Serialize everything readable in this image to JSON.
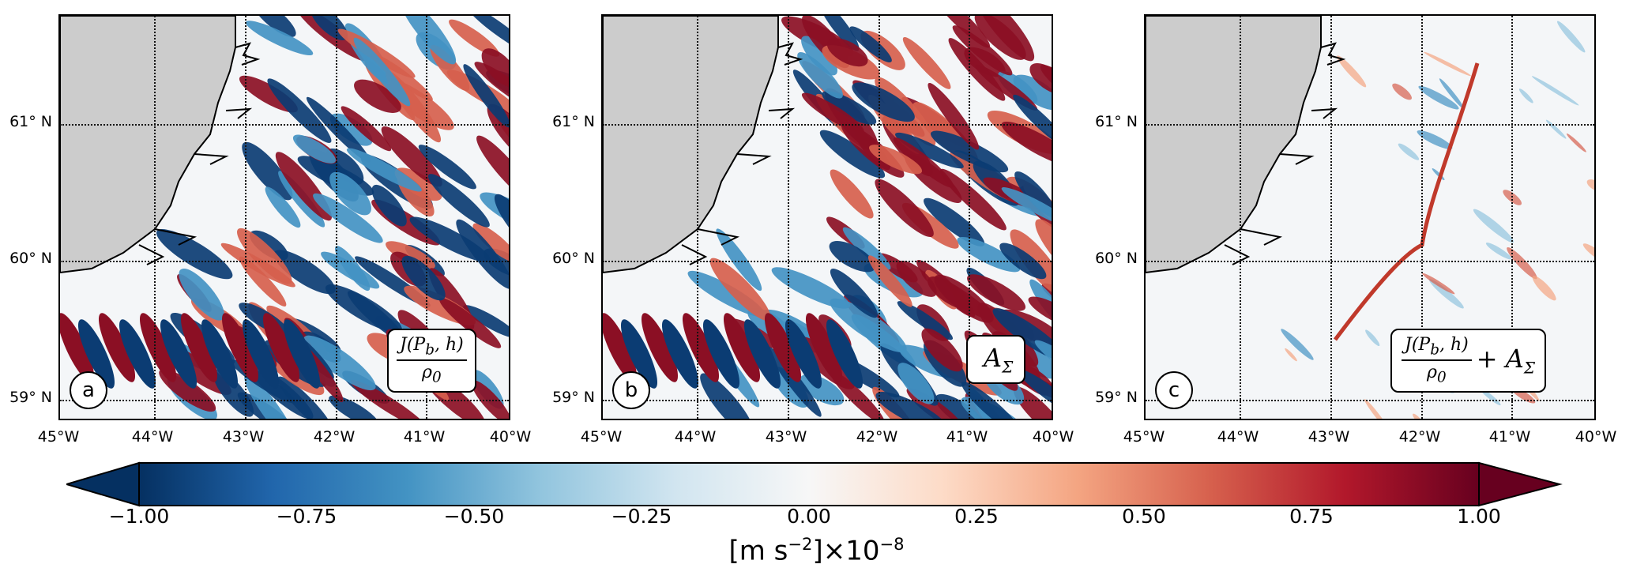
{
  "figure": {
    "lat_tick_labels": [
      "61° N",
      "60° N",
      "59° N"
    ],
    "lon_tick_labels": [
      "45°W",
      "44°W",
      "43°W",
      "42°W",
      "41°W",
      "40°W"
    ],
    "panels": [
      {
        "letter": "a",
        "term": "J(P_b,h)/ρ0",
        "term_num": "J(P",
        "term_num_sub": "b",
        "term_num_end": ", h)",
        "term_den": "ρ",
        "term_den_sub": "0",
        "term_suffix": "",
        "term_suffix_sub": ""
      },
      {
        "letter": "b",
        "term": "A_Σ",
        "term_num": "",
        "term_num_sub": "",
        "term_num_end": "",
        "term_den": "",
        "term_den_sub": "",
        "term_suffix": "A",
        "term_suffix_sub": "Σ"
      },
      {
        "letter": "c",
        "term": "J(P_b,h)/ρ0 + A_Σ",
        "term_num": "J(P",
        "term_num_sub": "b",
        "term_num_end": ", h)",
        "term_den": "ρ",
        "term_den_sub": "0",
        "term_suffix": "+ A",
        "term_suffix_sub": "Σ"
      }
    ],
    "land_color": "#cccccc"
  },
  "colorbar": {
    "cmap": "RdBu_r",
    "ticks": [
      "−1.00",
      "−0.75",
      "−0.50",
      "−0.25",
      "0.00",
      "0.25",
      "0.50",
      "0.75",
      "1.00"
    ],
    "tick_values": [
      -1.0,
      -0.75,
      -0.5,
      -0.25,
      0.0,
      0.25,
      0.5,
      0.75,
      1.0
    ],
    "label_main": "[m s",
    "label_exp": "−2",
    "label_tail": "]×10",
    "label_exp2": "−8",
    "colors": [
      "#053061",
      "#2166ac",
      "#4393c3",
      "#92c5de",
      "#d1e5f0",
      "#f7f7f7",
      "#fddbc7",
      "#f4a582",
      "#d6604d",
      "#b2182b",
      "#67001f"
    ]
  }
}
